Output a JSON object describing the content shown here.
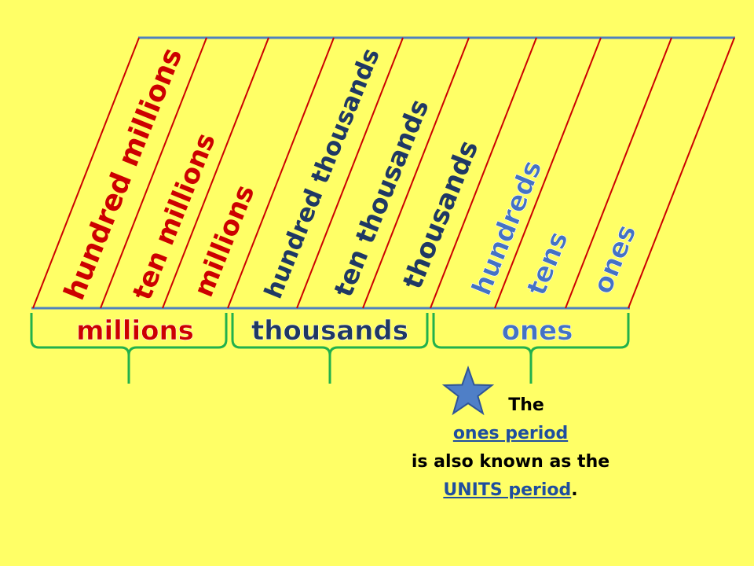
{
  "colors": {
    "background": "#ffff66",
    "millions": "#cc0000",
    "thousands": "#1f3864",
    "ones": "#4472c4",
    "separator": "#cc0000",
    "baseline": "#4f81bd",
    "bracket": "#22b14c",
    "star": "#4f7fc7"
  },
  "places": [
    {
      "label": "hundred millions",
      "period": "millions"
    },
    {
      "label": "ten millions",
      "period": "millions"
    },
    {
      "label": "millions",
      "period": "millions"
    },
    {
      "label": "hundred thousands",
      "period": "thousands"
    },
    {
      "label": "ten thousands",
      "period": "thousands"
    },
    {
      "label": "thousands",
      "period": "thousands"
    },
    {
      "label": "hundreds",
      "period": "ones"
    },
    {
      "label": "tens",
      "period": "ones"
    },
    {
      "label": "ones",
      "period": "ones"
    }
  ],
  "periods": [
    {
      "key": "millions",
      "label": "millions"
    },
    {
      "key": "thousands",
      "label": "thousands"
    },
    {
      "key": "ones",
      "label": "ones"
    }
  ],
  "note": {
    "line1": "The",
    "line2_link": "ones period",
    "line3": "is also known as the",
    "line4_link": "UNITS period",
    "line4_suffix": "."
  },
  "icons": {
    "star": "star-icon"
  }
}
